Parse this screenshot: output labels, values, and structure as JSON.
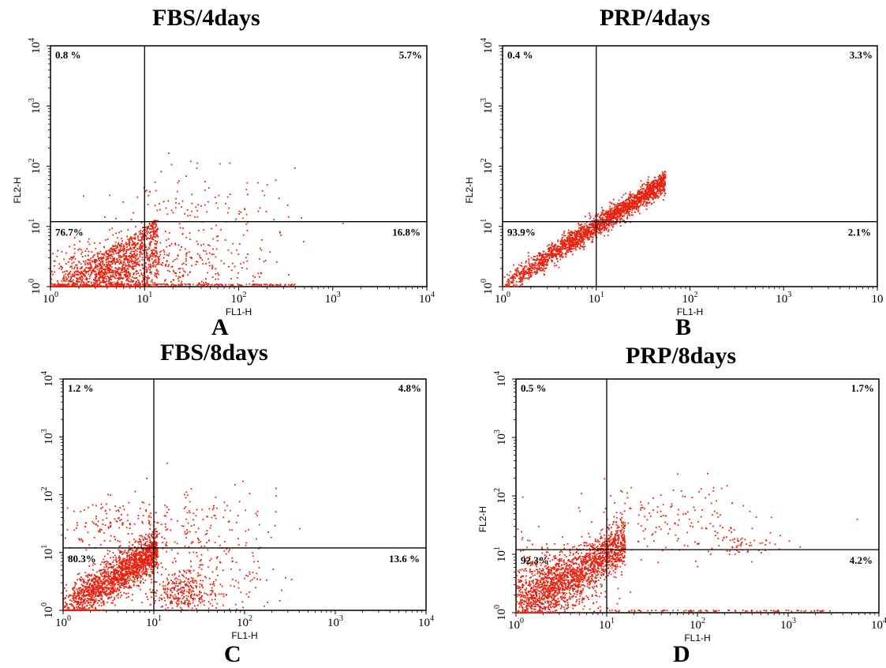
{
  "colors": {
    "dots": "#e8210e",
    "axes": "#000000",
    "background": "#ffffff"
  },
  "chart_data": [
    {
      "type": "scatter",
      "title": "FBS/4days",
      "panel_label": "A",
      "xlabel": "FL1-H",
      "ylabel": "FL2-H",
      "xscale": "log",
      "yscale": "log",
      "xlim": [
        1,
        10000
      ],
      "ylim": [
        1,
        10000
      ],
      "x_ticks": [
        "10",
        "10",
        "10",
        "10",
        "10"
      ],
      "x_tick_exps": [
        "0",
        "1",
        "2",
        "3",
        "4"
      ],
      "y_ticks": [
        "10",
        "10",
        "10",
        "10",
        "10"
      ],
      "y_tick_exps": [
        "0",
        "1",
        "2",
        "3",
        "4"
      ],
      "gate": {
        "x": 10,
        "y": 12
      },
      "quadrants": {
        "upper_left": "0.8 %",
        "upper_right": "5.7%",
        "lower_left": "76.7%",
        "lower_right": "16.8%"
      },
      "clusters": [
        {
          "kind": "diag",
          "n": 1200,
          "x0": 1.0,
          "x1": 14,
          "spread": 0.35,
          "below": true
        },
        {
          "kind": "blob",
          "n": 550,
          "cx": 3.5,
          "cy": 1.8,
          "sx": 0.35,
          "sy": 0.22
        },
        {
          "kind": "blob",
          "n": 260,
          "cx": 30,
          "cy": 2.5,
          "sx": 0.45,
          "sy": 0.35
        },
        {
          "kind": "blob",
          "n": 110,
          "cx": 40,
          "cy": 25,
          "sx": 0.5,
          "sy": 0.35
        },
        {
          "kind": "baseline",
          "n": 200,
          "x0": 1,
          "x1": 400,
          "y": 1.05
        }
      ]
    },
    {
      "type": "scatter",
      "title": "PRP/4days",
      "panel_label": "B",
      "xlabel": "FL1-H",
      "ylabel": "FL2-H",
      "xscale": "log",
      "yscale": "log",
      "xlim": [
        1,
        10000
      ],
      "ylim": [
        1,
        10000
      ],
      "x_ticks": [
        "10",
        "10",
        "10",
        "10",
        "10"
      ],
      "x_tick_exps": [
        "0",
        "1",
        "2",
        "3",
        ""
      ],
      "y_ticks": [
        "10",
        "10",
        "10",
        "10",
        "10"
      ],
      "y_tick_exps": [
        "0",
        "1",
        "2",
        "3",
        "4"
      ],
      "gate": {
        "x": 10,
        "y": 12
      },
      "quadrants": {
        "upper_left": "0.4 %",
        "upper_right": "3.3%",
        "lower_left": "93.9%",
        "lower_right": "2.1%"
      },
      "clusters": [
        {
          "kind": "diag",
          "n": 2200,
          "x0": 1.0,
          "x1": 55,
          "spread": 0.09,
          "below": false
        }
      ]
    },
    {
      "type": "scatter",
      "title": "FBS/8days",
      "panel_label": "C",
      "xlabel": "FL1-H",
      "ylabel": "",
      "xscale": "log",
      "yscale": "log",
      "xlim": [
        1,
        10000
      ],
      "ylim": [
        1,
        10000
      ],
      "x_ticks": [
        "10",
        "10",
        "10",
        "10",
        "10"
      ],
      "x_tick_exps": [
        "0",
        "1",
        "2",
        "3",
        "4"
      ],
      "y_ticks": [
        "10",
        "10",
        "10",
        "10",
        "10"
      ],
      "y_tick_exps": [
        "0",
        "1",
        "2",
        "3",
        "4"
      ],
      "gate": {
        "x": 10,
        "y": 12
      },
      "quadrants": {
        "upper_left": "1.2 %",
        "upper_right": "4.8%",
        "lower_left": "80.3%",
        "lower_right": "13.6 %"
      },
      "clusters": [
        {
          "kind": "diag",
          "n": 1800,
          "x0": 1.0,
          "x1": 11,
          "spread": 0.18,
          "below": false
        },
        {
          "kind": "blob",
          "n": 300,
          "cx": 22,
          "cy": 2.0,
          "sx": 0.2,
          "sy": 0.18
        },
        {
          "kind": "blob",
          "n": 180,
          "cx": 40,
          "cy": 5,
          "sx": 0.4,
          "sy": 0.4
        },
        {
          "kind": "blob",
          "n": 140,
          "cx": 3.5,
          "cy": 30,
          "sx": 0.3,
          "sy": 0.25
        },
        {
          "kind": "blob",
          "n": 120,
          "cx": 30,
          "cy": 35,
          "sx": 0.45,
          "sy": 0.3
        }
      ]
    },
    {
      "type": "scatter",
      "title": "PRP/8days",
      "panel_label": "D",
      "xlabel": "FL1-H",
      "ylabel": "FL2-H",
      "xscale": "log",
      "yscale": "log",
      "xlim": [
        1,
        10000
      ],
      "ylim": [
        1,
        10000
      ],
      "x_ticks": [
        "10",
        "10",
        "10",
        "10",
        "10"
      ],
      "x_tick_exps": [
        "0",
        "1",
        "2",
        "3",
        "4"
      ],
      "y_ticks": [
        "10",
        "10",
        "10",
        "10",
        "10"
      ],
      "y_tick_exps": [
        "0",
        "1",
        "2",
        "3",
        "4"
      ],
      "gate": {
        "x": 10,
        "y": 12
      },
      "quadrants": {
        "upper_left": "0.5 %",
        "upper_right": "1.7%",
        "lower_left": "92.3%",
        "lower_right": "4.2%"
      },
      "clusters": [
        {
          "kind": "diag",
          "n": 1500,
          "x0": 1.0,
          "x1": 16,
          "spread": 0.2,
          "below": false
        },
        {
          "kind": "blob",
          "n": 700,
          "cx": 2.2,
          "cy": 3.0,
          "sx": 0.28,
          "sy": 0.32
        },
        {
          "kind": "blob",
          "n": 160,
          "cx": 60,
          "cy": 40,
          "sx": 0.55,
          "sy": 0.28
        },
        {
          "kind": "blob",
          "n": 60,
          "cx": 300,
          "cy": 15,
          "sx": 0.25,
          "sy": 0.1
        },
        {
          "kind": "baseline",
          "n": 90,
          "x0": 10,
          "x1": 3000,
          "y": 1.05
        }
      ]
    }
  ]
}
